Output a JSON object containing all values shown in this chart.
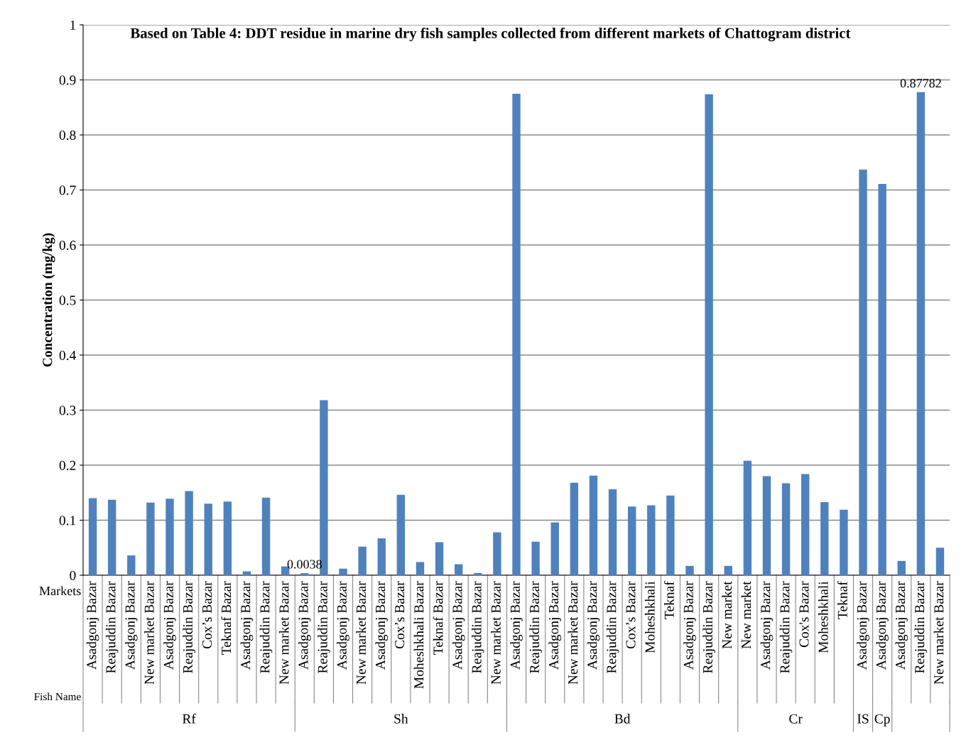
{
  "chart_data": {
    "type": "bar",
    "title": "Based on Table 4: DDT residue in marine dry fish samples collected from different markets of Chattogram district",
    "ylabel": "Concentration (mg/kg)",
    "categories": [
      "Asadgonj Bazar",
      "Reajuddin Bazar",
      "Asadgonj Bazar",
      "New market Bazar",
      "Asadgonj Bazar",
      "Reajuddin Bazar",
      "Cox’s Bazar",
      "Teknaf Bazar",
      "Asadgonj Bazar",
      "Reajuddin Bazar",
      "New market Bazar",
      "Asadgonj Bazar",
      "Reajuddin Bazar",
      "Asadgonj Bazar",
      "New market Bazar",
      "Asadgonj Bazar",
      "Cox’s Bazar",
      "Moheshkhali Bazar",
      "Teknaf Bazar",
      "Asadgonj Bazar",
      "Reajuddin Bazar",
      "New market Bazar",
      "Asadgonj Bazar",
      "Reajuddin Bazar",
      "Asadgonj Bazar",
      "New market Bazar",
      "Asadgonj Bazar",
      "Reajuddin Bazar",
      "Cox’s Bazar",
      "Moheshkhali",
      "Teknaf",
      "Asadgonj Bazar",
      "Reajuddin Bazar",
      "New market",
      "New market",
      "Asadgonj Bazar",
      "Reajuddin Bazar",
      "Cox's Bazar",
      "Moheshkhali",
      "Teknaf",
      "Asadgonj Bazar",
      "Asadgonj Bazar",
      "Asadgonj Bazar",
      "Reajuddin Bazar",
      "New market Bazar"
    ],
    "values": [
      0.14,
      0.137,
      0.036,
      0.132,
      0.139,
      0.153,
      0.13,
      0.134,
      0.007,
      0.141,
      0.016,
      0.0038,
      0.318,
      0.012,
      0.052,
      0.067,
      0.146,
      0.024,
      0.06,
      0.02,
      0.004,
      0.078,
      0.875,
      0.061,
      0.096,
      0.168,
      0.181,
      0.156,
      0.125,
      0.127,
      0.145,
      0.017,
      0.874,
      0.017,
      0.208,
      0.18,
      0.167,
      0.184,
      0.133,
      0.119,
      0.737,
      0.711,
      0.026,
      0.87782,
      0.05
    ],
    "value_labels": [
      null,
      null,
      null,
      null,
      null,
      null,
      null,
      null,
      null,
      null,
      null,
      "0.0038",
      null,
      null,
      null,
      null,
      null,
      null,
      null,
      null,
      null,
      null,
      null,
      null,
      null,
      null,
      null,
      null,
      null,
      null,
      null,
      null,
      null,
      null,
      null,
      null,
      null,
      null,
      null,
      null,
      null,
      null,
      null,
      "0.87782",
      null
    ],
    "color": "#4f81bd",
    "ylim": [
      0,
      1
    ],
    "yticks": [
      0,
      0.1,
      0.2,
      0.3,
      0.4,
      0.5,
      0.6,
      0.7,
      0.8,
      0.9,
      1
    ],
    "grid": "y",
    "annotations": [
      "Markets",
      "Fish Name",
      "Rf",
      "Sh",
      "Bd",
      "Cr",
      "IS",
      "Cp"
    ]
  }
}
